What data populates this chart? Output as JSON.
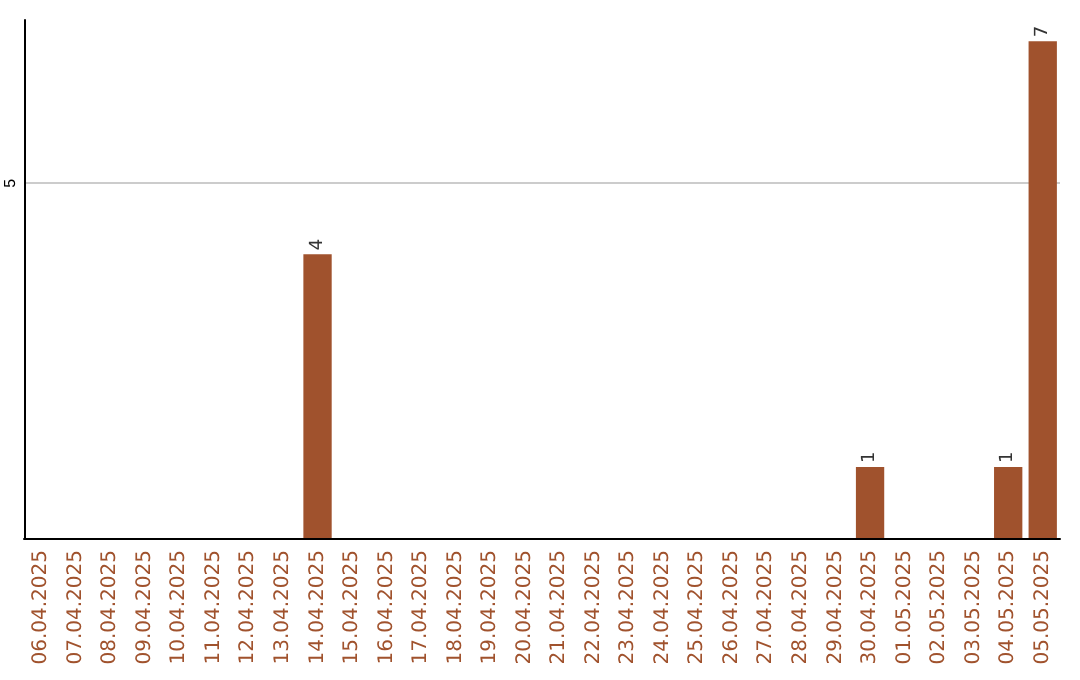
{
  "chart_data": {
    "type": "bar",
    "categories": [
      "06.04.2025",
      "07.04.2025",
      "08.04.2025",
      "09.04.2025",
      "10.04.2025",
      "11.04.2025",
      "12.04.2025",
      "13.04.2025",
      "14.04.2025",
      "15.04.2025",
      "16.04.2025",
      "17.04.2025",
      "18.04.2025",
      "19.04.2025",
      "20.04.2025",
      "21.04.2025",
      "22.04.2025",
      "23.04.2025",
      "24.04.2025",
      "25.04.2025",
      "26.04.2025",
      "27.04.2025",
      "28.04.2025",
      "29.04.2025",
      "30.04.2025",
      "01.05.2025",
      "02.05.2025",
      "03.05.2025",
      "04.05.2025",
      "05.05.2025"
    ],
    "values": [
      0,
      0,
      0,
      0,
      0,
      0,
      0,
      0,
      4,
      0,
      0,
      0,
      0,
      0,
      0,
      0,
      0,
      0,
      0,
      0,
      0,
      0,
      0,
      0,
      1,
      0,
      0,
      0,
      1,
      7
    ],
    "color": "#a0522d",
    "value_labels": [
      null,
      null,
      null,
      null,
      null,
      null,
      null,
      null,
      "4",
      null,
      null,
      null,
      null,
      null,
      null,
      null,
      null,
      null,
      null,
      null,
      null,
      null,
      null,
      null,
      "1",
      null,
      null,
      null,
      "1",
      "7"
    ],
    "ylim": [
      0,
      7.3
    ],
    "yticks": [
      5
    ],
    "grid": "y"
  }
}
